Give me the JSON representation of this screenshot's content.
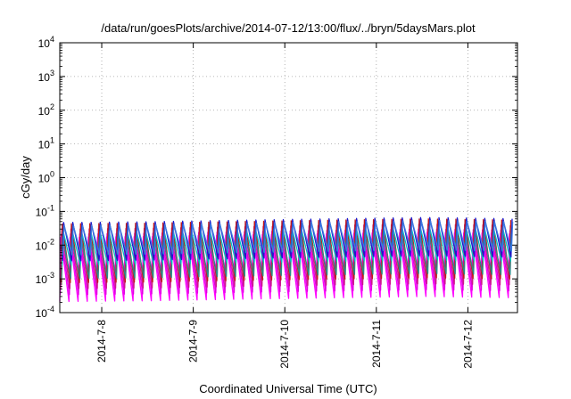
{
  "chart_data": {
    "type": "line",
    "title": "/data/run/goesPlots/archive/2014-07-12/13:00/flux/../bryn/5daysMars.plot",
    "xlabel": "Coordinated Universal Time (UTC)",
    "ylabel": "cGy/day",
    "yscale": "log",
    "ylim": [
      0.0001,
      10000
    ],
    "yticks": [
      {
        "base": "10",
        "exp": "-4"
      },
      {
        "base": "10",
        "exp": "-3"
      },
      {
        "base": "10",
        "exp": "-2"
      },
      {
        "base": "10",
        "exp": "-1"
      },
      {
        "base": "10",
        "exp": "0"
      },
      {
        "base": "10",
        "exp": "1"
      },
      {
        "base": "10",
        "exp": "2"
      },
      {
        "base": "10",
        "exp": "3"
      },
      {
        "base": "10",
        "exp": "4"
      }
    ],
    "xlim": [
      "2014-07-07T13:00",
      "2014-07-12T13:00"
    ],
    "xticks": [
      "2014-7-8",
      "2014-7-9",
      "2014-7-10",
      "2014-7-11",
      "2014-7-12"
    ],
    "grid": true,
    "oscillation": {
      "cycles_per_day": 10,
      "days": 5
    },
    "series": [
      {
        "color": "#ff00ff",
        "peak": 0.02,
        "trough": 0.00025,
        "phase": 0.0
      },
      {
        "color": "#e000e0",
        "peak": 0.025,
        "trough": 0.0004,
        "phase": 0.05
      },
      {
        "color": "#cc1a8a",
        "peak": 0.035,
        "trough": 0.0006,
        "phase": 0.1
      },
      {
        "color": "#c21a1a",
        "peak": 0.05,
        "trough": 0.0009,
        "phase": 0.15
      },
      {
        "color": "#2a8a8a",
        "peak": 0.02,
        "trough": 0.0012,
        "phase": 0.2
      },
      {
        "color": "#00c0c0",
        "peak": 0.03,
        "trough": 0.003,
        "phase": 0.25
      },
      {
        "color": "#1a1acc",
        "peak": 0.055,
        "trough": 0.004,
        "phase": 0.3
      },
      {
        "color": "#3a7ae0",
        "peak": 0.045,
        "trough": 0.006,
        "phase": 0.35
      }
    ],
    "trend": [
      {
        "day": 0,
        "factor": 0.85
      },
      {
        "day": 1,
        "factor": 0.9
      },
      {
        "day": 2,
        "factor": 1.0
      },
      {
        "day": 3,
        "factor": 1.1
      },
      {
        "day": 4,
        "factor": 1.2
      },
      {
        "day": 5,
        "factor": 1.1
      }
    ]
  }
}
